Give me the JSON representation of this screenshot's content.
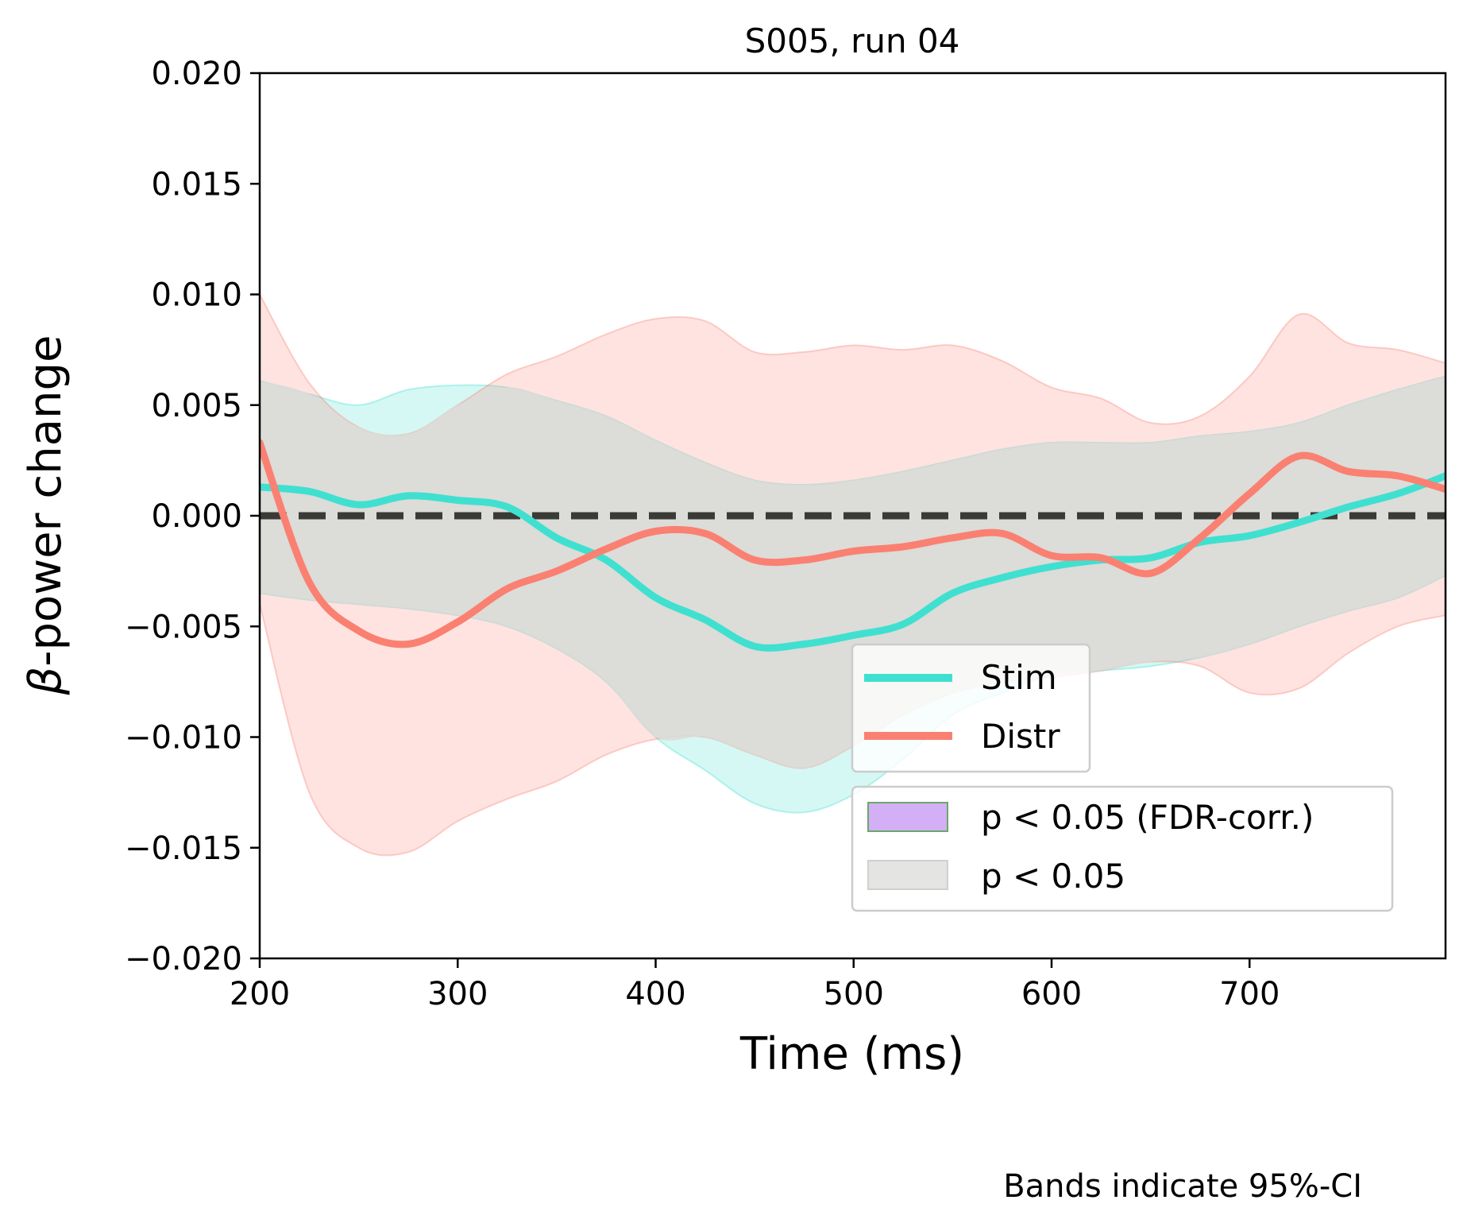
{
  "chart_data": {
    "type": "line",
    "title": "S005, run 04",
    "xlabel": "Time (ms)",
    "ylabel_symbol": "β",
    "ylabel_rest": "-power change",
    "xlim": [
      200,
      799
    ],
    "ylim": [
      -0.02,
      0.02
    ],
    "xticks": [
      200,
      300,
      400,
      500,
      600,
      700
    ],
    "xtick_labels": [
      "200",
      "300",
      "400",
      "500",
      "600",
      "700"
    ],
    "yticks": [
      0.02,
      0.015,
      0.01,
      0.005,
      0.0,
      -0.005,
      -0.01,
      -0.015,
      -0.02
    ],
    "ytick_labels": [
      "0.020",
      "0.015",
      "0.010",
      "0.005",
      "0.000",
      "−0.005",
      "−0.010",
      "−0.015",
      "−0.020"
    ],
    "grid": false,
    "x": [
      200,
      225,
      250,
      275,
      300,
      325,
      350,
      375,
      400,
      425,
      450,
      475,
      500,
      525,
      550,
      575,
      600,
      625,
      650,
      675,
      700,
      725,
      750,
      775,
      799
    ],
    "series": [
      {
        "name": "Stim",
        "color": "#40E0D0",
        "values": [
          0.0013,
          0.0011,
          0.0005,
          0.0009,
          0.0007,
          0.0004,
          -0.001,
          -0.002,
          -0.0037,
          -0.0047,
          -0.0059,
          -0.0058,
          -0.0054,
          -0.0049,
          -0.0035,
          -0.0028,
          -0.0023,
          -0.002,
          -0.0019,
          -0.0012,
          -0.0009,
          -0.0003,
          0.0004,
          0.001,
          0.0018
        ],
        "ci_upper": [
          0.0061,
          0.0055,
          0.005,
          0.0057,
          0.0059,
          0.0058,
          0.0052,
          0.0045,
          0.0034,
          0.0024,
          0.0016,
          0.0014,
          0.0016,
          0.002,
          0.0025,
          0.003,
          0.0033,
          0.0033,
          0.0033,
          0.0036,
          0.0038,
          0.0042,
          0.005,
          0.0057,
          0.0063
        ],
        "ci_lower": [
          -0.0035,
          -0.0038,
          -0.004,
          -0.0042,
          -0.0045,
          -0.005,
          -0.006,
          -0.0075,
          -0.01,
          -0.0115,
          -0.013,
          -0.0134,
          -0.0126,
          -0.011,
          -0.009,
          -0.008,
          -0.0072,
          -0.007,
          -0.0068,
          -0.0064,
          -0.0058,
          -0.005,
          -0.0043,
          -0.0037,
          -0.0027
        ]
      },
      {
        "name": "Distr",
        "color": "#FA8072",
        "values": [
          0.0033,
          -0.003,
          -0.0052,
          -0.0058,
          -0.0048,
          -0.0033,
          -0.0025,
          -0.0015,
          -0.0007,
          -0.0008,
          -0.002,
          -0.002,
          -0.0016,
          -0.0014,
          -0.001,
          -0.0008,
          -0.0018,
          -0.0019,
          -0.0026,
          -0.001,
          0.001,
          0.0027,
          0.002,
          0.0018,
          0.0012
        ],
        "ci_upper": [
          0.01,
          0.006,
          0.004,
          0.0037,
          0.005,
          0.0064,
          0.0072,
          0.0082,
          0.0089,
          0.0088,
          0.0074,
          0.0074,
          0.0077,
          0.0075,
          0.0077,
          0.007,
          0.0058,
          0.0053,
          0.0042,
          0.0045,
          0.0063,
          0.0091,
          0.0078,
          0.0075,
          0.0069
        ],
        "ci_lower": [
          -0.004,
          -0.0125,
          -0.015,
          -0.0152,
          -0.0138,
          -0.0128,
          -0.012,
          -0.0108,
          -0.0101,
          -0.01,
          -0.0108,
          -0.0114,
          -0.0104,
          -0.009,
          -0.008,
          -0.0075,
          -0.0073,
          -0.007,
          -0.0066,
          -0.0068,
          -0.008,
          -0.0078,
          -0.0062,
          -0.005,
          -0.0045
        ]
      }
    ],
    "reference_line": {
      "y": 0,
      "style": "dashed",
      "color": "#3a3a36"
    },
    "legend_series": {
      "placement": "lower-right-center",
      "entries": [
        {
          "label": "Stim",
          "color": "#40E0D0"
        },
        {
          "label": "Distr",
          "color": "#FA8072"
        }
      ]
    },
    "legend_significance": {
      "placement": "lower-right",
      "entries": [
        {
          "label": "p < 0.05 (FDR-corr.)",
          "fill": "#d3aff5",
          "edge": "#6aa86a"
        },
        {
          "label": "p < 0.05",
          "fill": "#e4e4e2",
          "edge": "#d0d0ce"
        }
      ]
    },
    "note": "Bands indicate 95%-CI"
  }
}
